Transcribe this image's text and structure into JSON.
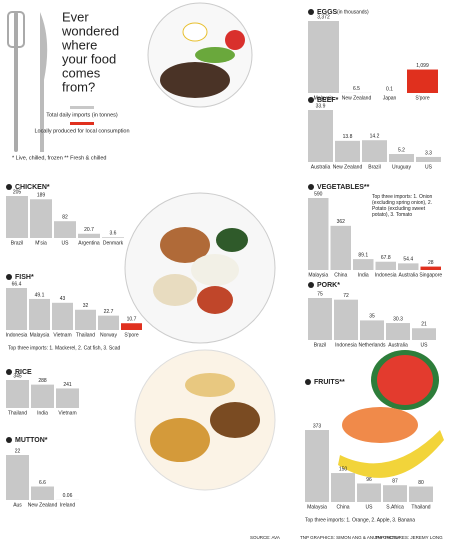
{
  "header": {
    "title": [
      "Ever",
      "wondered",
      "where",
      "your food",
      "comes",
      "from?"
    ],
    "legend": [
      {
        "label": "Total daily imports (in tonnes)",
        "color": "#c8c8c8"
      },
      {
        "label": "Locally produced for local consumption",
        "color": "#e0301e"
      }
    ],
    "footnote": "* Live, chilled, frozen  ** Fresh & chilled"
  },
  "chart_data": [
    {
      "type": "bar",
      "title": "EGGS",
      "subtitle": "(in thousands)",
      "categories": [
        "Malaysia",
        "New Zealand",
        "Japan",
        "S'pore"
      ],
      "values": [
        3372,
        6.5,
        0.1,
        1099
      ],
      "value_labels": [
        "3,372",
        "6.5",
        "0.1",
        "1,099"
      ],
      "colors": [
        "#c8c8c8",
        "#c8c8c8",
        "#c8c8c8",
        "#e0301e"
      ]
    },
    {
      "type": "bar",
      "title": "BEEF*",
      "categories": [
        "Australia",
        "New Zealand",
        "Brazil",
        "Uruguay",
        "US"
      ],
      "values": [
        33.9,
        13.8,
        14.2,
        5.2,
        3.3
      ],
      "colors": [
        "#c8c8c8",
        "#c8c8c8",
        "#c8c8c8",
        "#c8c8c8",
        "#c8c8c8"
      ]
    },
    {
      "type": "bar",
      "title": "CHICKEN*",
      "categories": [
        "Brazil",
        "M'sia",
        "US",
        "Argentina",
        "Denmark"
      ],
      "values": [
        205,
        189,
        82,
        20.7,
        3.6
      ],
      "colors": [
        "#c8c8c8",
        "#c8c8c8",
        "#c8c8c8",
        "#c8c8c8",
        "#c8c8c8"
      ]
    },
    {
      "type": "bar",
      "title": "VEGETABLES**",
      "note": "Top three imports: 1. Onion (excluding spring onion), 2. Potato (excluding sweet potato), 3. Tomato",
      "categories": [
        "Malaysia",
        "China",
        "India",
        "Indonesia",
        "Australia",
        "Singapore"
      ],
      "values": [
        590,
        362,
        89.1,
        67.8,
        54.4,
        28
      ],
      "colors": [
        "#c8c8c8",
        "#c8c8c8",
        "#c8c8c8",
        "#c8c8c8",
        "#c8c8c8",
        "#e0301e"
      ]
    },
    {
      "type": "bar",
      "title": "FISH*",
      "note": "Top three imports: 1. Mackerel, 2. Cat fish, 3. Scad",
      "categories": [
        "Indonesia",
        "Malaysia",
        "Vietnam",
        "Thailand",
        "Norway",
        "S'pore"
      ],
      "values": [
        66.4,
        49.1,
        43,
        32,
        22.7,
        10.7
      ],
      "colors": [
        "#c8c8c8",
        "#c8c8c8",
        "#c8c8c8",
        "#c8c8c8",
        "#c8c8c8",
        "#e0301e"
      ]
    },
    {
      "type": "bar",
      "title": "PORK*",
      "categories": [
        "Brazil",
        "Indonesia",
        "Netherlands",
        "Australia",
        "US"
      ],
      "values": [
        75,
        72,
        35,
        30.3,
        21
      ],
      "colors": [
        "#c8c8c8",
        "#c8c8c8",
        "#c8c8c8",
        "#c8c8c8",
        "#c8c8c8"
      ]
    },
    {
      "type": "bar",
      "title": "RICE",
      "categories": [
        "Thailand",
        "India",
        "Vietnam"
      ],
      "values": [
        345,
        288,
        241
      ],
      "colors": [
        "#c8c8c8",
        "#c8c8c8",
        "#c8c8c8"
      ]
    },
    {
      "type": "bar",
      "title": "MUTTON*",
      "categories": [
        "Aus",
        "New Zealand",
        "Ireland"
      ],
      "values": [
        22,
        6.6,
        0.06
      ],
      "colors": [
        "#c8c8c8",
        "#c8c8c8",
        "#c8c8c8"
      ]
    },
    {
      "type": "bar",
      "title": "FRUITS**",
      "note": "Top three imports: 1. Orange, 2. Apple, 3. Banana",
      "categories": [
        "Malaysia",
        "China",
        "US",
        "S.Africa",
        "Thailand"
      ],
      "values": [
        373,
        150,
        96,
        87,
        80
      ],
      "colors": [
        "#c8c8c8",
        "#c8c8c8",
        "#c8c8c8",
        "#c8c8c8",
        "#c8c8c8"
      ]
    }
  ],
  "credits": [
    "SOURCE: AVA",
    "TNP GRAPHICS: SIMON ANG & ANUPA GHOSH",
    "TNP PICTURES: JEREMY LONG"
  ]
}
